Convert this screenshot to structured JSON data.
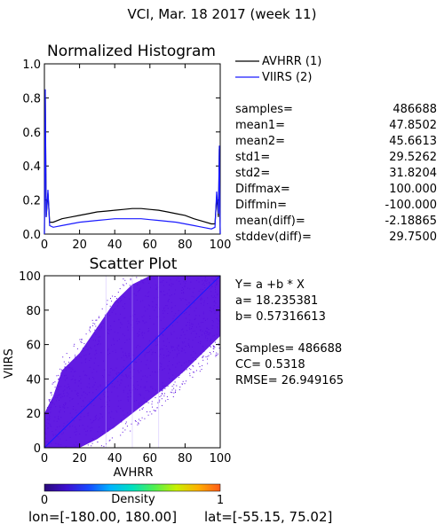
{
  "figure_title": "VCI,  Mar. 18 2017 (week 11)",
  "legend": {
    "entries": [
      {
        "label": "AVHRR (1)",
        "color": "#000000"
      },
      {
        "label": "VIIRS (2)",
        "color": "#1a1aff"
      }
    ]
  },
  "stats": [
    {
      "label": "samples=",
      "value": "486688"
    },
    {
      "label": "mean1=",
      "value": "47.8502"
    },
    {
      "label": "mean2=",
      "value": "45.6613"
    },
    {
      "label": "std1=",
      "value": "29.5262"
    },
    {
      "label": "std2=",
      "value": "31.8204"
    },
    {
      "label": "Diffmax=",
      "value": "100.000"
    },
    {
      "label": "Diffmin=",
      "value": "-100.000"
    },
    {
      "label": "mean(diff)=",
      "value": "-2.18865"
    },
    {
      "label": "stddev(diff)=",
      "value": "29.7500"
    }
  ],
  "regression": {
    "equation": "Y= a +b * X",
    "a_text": "a= 18.235381",
    "b_text": "b= 0.57316613",
    "samples_text": "Samples= 486688",
    "cc_text": "CC=  0.5318",
    "rmse_text": "RMSE= 26.949165"
  },
  "colorbar": {
    "label": "Density",
    "min_label": "0",
    "max_label": "1",
    "stops": [
      "#2a0a7a",
      "#3d10d0",
      "#1848ff",
      "#00b4ff",
      "#00e0c0",
      "#50f050",
      "#c8f000",
      "#ffb000",
      "#ff5a1a"
    ]
  },
  "footer": {
    "lon_text": "lon=[-180.00, 180.00]",
    "lat_text": "lat=[-55.15, 75.02]"
  },
  "colors": {
    "scatter": "#5a10e0",
    "diagonal": "#1a1aff",
    "avhrr": "#000000",
    "viirs": "#1a1aff"
  },
  "chart_data": [
    {
      "type": "line",
      "title": "Normalized Histogram",
      "xlim": [
        0,
        100
      ],
      "ylim": [
        0,
        1.0
      ],
      "x_ticks": [
        "0",
        "20",
        "40",
        "60",
        "80",
        "100"
      ],
      "y_ticks": [
        "0.0",
        "0.2",
        "0.4",
        "0.6",
        "0.8",
        "1.0"
      ],
      "series": [
        {
          "name": "AVHRR (1)",
          "x": [
            0,
            0.5,
            1,
            2,
            3,
            5,
            10,
            15,
            20,
            25,
            30,
            35,
            40,
            45,
            50,
            55,
            60,
            65,
            70,
            75,
            80,
            85,
            90,
            95,
            97,
            98,
            99,
            99.5,
            100
          ],
          "y": [
            0.0,
            0.8,
            0.1,
            0.24,
            0.07,
            0.07,
            0.09,
            0.1,
            0.11,
            0.12,
            0.13,
            0.135,
            0.14,
            0.145,
            0.15,
            0.15,
            0.145,
            0.14,
            0.13,
            0.12,
            0.11,
            0.09,
            0.075,
            0.06,
            0.06,
            0.22,
            0.1,
            0.5,
            0.0
          ]
        },
        {
          "name": "VIIRS (2)",
          "x": [
            0,
            0.5,
            1,
            2,
            3,
            5,
            10,
            15,
            20,
            25,
            30,
            35,
            40,
            45,
            50,
            55,
            60,
            65,
            70,
            75,
            80,
            85,
            90,
            95,
            97,
            98,
            99,
            99.5,
            100
          ],
          "y": [
            0.0,
            0.85,
            0.1,
            0.26,
            0.05,
            0.04,
            0.05,
            0.06,
            0.07,
            0.075,
            0.08,
            0.085,
            0.09,
            0.09,
            0.09,
            0.09,
            0.085,
            0.08,
            0.075,
            0.07,
            0.06,
            0.05,
            0.04,
            0.03,
            0.04,
            0.25,
            0.12,
            0.52,
            0.0
          ]
        }
      ]
    },
    {
      "type": "scatter",
      "title": "Scatter Plot",
      "xlabel": "AVHRR",
      "ylabel": "VIIRS",
      "xlim": [
        0,
        100
      ],
      "ylim": [
        0,
        100
      ],
      "x_ticks": [
        "0",
        "20",
        "40",
        "60",
        "80",
        "100"
      ],
      "y_ticks": [
        "0",
        "20",
        "40",
        "60",
        "80",
        "100"
      ],
      "intercept": 18.235381,
      "slope": 0.57316613,
      "cc": 0.5318,
      "samples": 486688,
      "reference_line": {
        "x": [
          0,
          100
        ],
        "y": [
          0,
          100
        ]
      },
      "density_envelope": {
        "x": [
          0,
          5,
          10,
          20,
          30,
          40,
          50,
          60,
          70,
          80,
          90,
          95,
          100
        ],
        "y_low": [
          0,
          0,
          0,
          0,
          5,
          12,
          20,
          28,
          36,
          45,
          55,
          60,
          65
        ],
        "y_high": [
          20,
          30,
          45,
          55,
          70,
          85,
          95,
          100,
          100,
          100,
          100,
          100,
          100
        ]
      }
    }
  ]
}
